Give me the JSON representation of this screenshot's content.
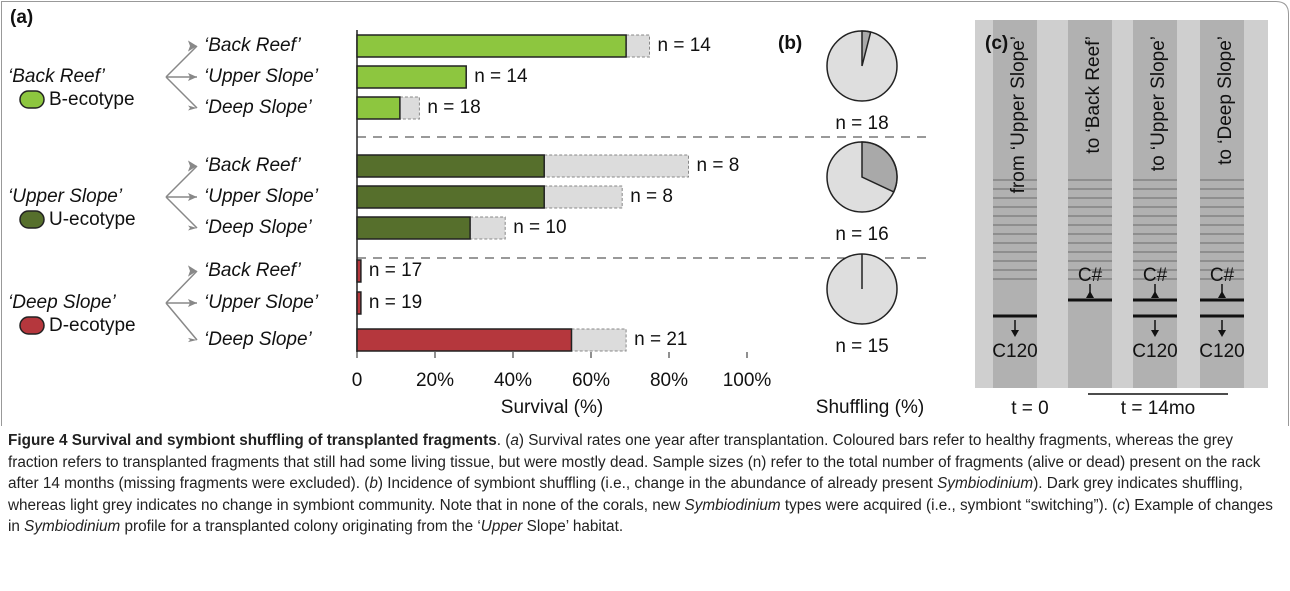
{
  "chart_data": [
    {
      "type": "bar",
      "label": "(a)",
      "xlabel": "Survival (%)",
      "groups": [
        {
          "name": "‘Back Reef’",
          "ecotype": "B-ecotype",
          "color": "#8dc63f"
        },
        {
          "name": "‘Upper Slope’",
          "ecotype": "U-ecotype",
          "color": "#566f2c"
        },
        {
          "name": "‘Deep Slope’",
          "ecotype": "D-ecotype",
          "color": "#b5373d"
        }
      ],
      "categories": [
        "‘Back Reef’",
        "‘Upper Slope’",
        "‘Deep Slope’",
        "‘Back Reef’",
        "‘Upper Slope’",
        "‘Deep Slope’",
        "‘Back Reef’",
        "‘Upper Slope’",
        "‘Deep Slope’"
      ],
      "series": [
        {
          "values": [
            69,
            28,
            11,
            48,
            48,
            29,
            1,
            1,
            55
          ]
        },
        {
          "color": "#dcdcdc",
          "values": [
            6,
            0,
            5,
            37,
            20,
            9,
            0,
            0,
            14
          ]
        }
      ],
      "n_labels": [
        "n = 14",
        "n = 14",
        "n = 18",
        "n = 8",
        "n = 8",
        "n = 10",
        "n = 17",
        "n = 19",
        "n = 21"
      ],
      "xlim": [
        0,
        100
      ],
      "xticks": [
        0,
        {
          "value": 20,
          "label": "20%"
        },
        {
          "value": 40,
          "label": "40%"
        },
        {
          "value": 60,
          "label": "60%"
        },
        {
          "value": 80,
          "label": "80%"
        },
        {
          "value": 100,
          "label": "100%"
        }
      ]
    },
    {
      "type": "pie",
      "label": "(b)",
      "xlabel": "Shuffling (%)",
      "values": [
        4,
        32,
        0
      ],
      "n_labels": [
        "n = 18",
        "n = 16",
        "n = 15"
      ],
      "color": "#a9a9a9",
      "background_color": "#dedede"
    }
  ],
  "gel": {
    "label": "(c)",
    "lanes": [
      "from ‘Upper Slope’",
      "to ‘Back Reef’",
      "to ‘Upper Slope’",
      "to ‘Deep Slope’"
    ],
    "bands": [
      [
        "C120"
      ],
      [
        "C#"
      ],
      [
        "C#",
        "C120"
      ],
      [
        "C#",
        "C120"
      ]
    ],
    "time_labels": [
      "t = 0",
      "t = 14mo"
    ]
  },
  "caption": {
    "title": "Figure 4 Survival and symbiont shuffling of transplanted fragments",
    "parts": [
      {
        "text": ". ("
      },
      {
        "text": "a",
        "italic": true
      },
      {
        "text": ") Survival rates one year after transplantation. Coloured bars refer to healthy fragments, whereas the grey fraction refers to transplanted fragments that still had some living tissue, but were mostly dead. Sample sizes (n) refer to the total number of fragments (alive or dead) present on the rack after 14 months (missing fragments were excluded). ("
      },
      {
        "text": "b",
        "italic": true
      },
      {
        "text": ") Incidence of symbiont shuffling (i.e., change in the abundance of already present "
      },
      {
        "text": "Symbiodinium",
        "italic": true
      },
      {
        "text": "). Dark grey indicates shuffling, whereas light grey indicates no change in symbiont community. Note that in none of the corals, new "
      },
      {
        "text": "Symbiodinium",
        "italic": true
      },
      {
        "text": " types were acquired (i.e., symbiont “switching”). ("
      },
      {
        "text": "c",
        "italic": true
      },
      {
        "text": ") Example of changes in "
      },
      {
        "text": "Symbiodinium",
        "italic": true
      },
      {
        "text": " profile for a transplanted colony originating from the ‘"
      },
      {
        "text": "Upper",
        "italic": true
      },
      {
        "text": " Slope’ habitat."
      }
    ]
  }
}
